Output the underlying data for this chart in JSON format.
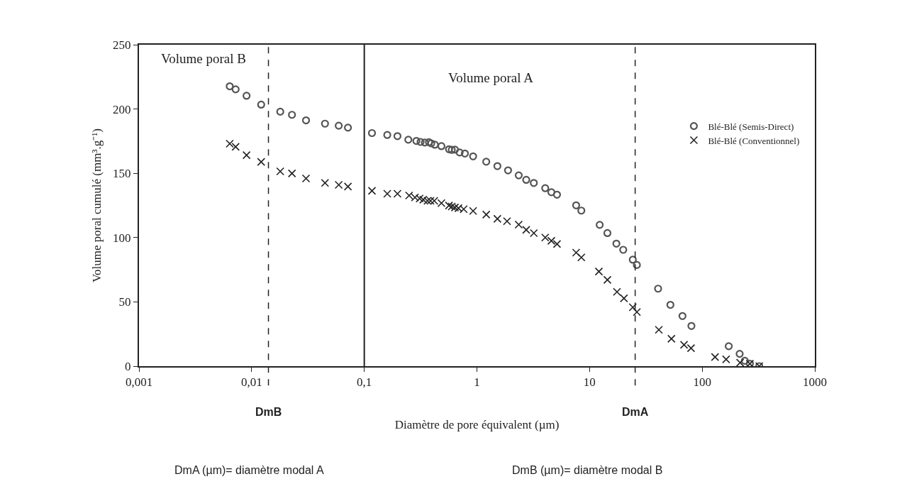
{
  "chart_data": {
    "type": "scatter",
    "xlabel": "Diamètre de pore équivalent (µm)",
    "ylabel": "Volume poral cumulé (mm³.g⁻¹)",
    "log": "x",
    "xlim": [
      0.001,
      1000
    ],
    "xticks": [
      {
        "value": 0.001,
        "label": "0,001"
      },
      {
        "value": 0.01,
        "label": "0,01"
      },
      {
        "value": 0.1,
        "label": "0,1"
      },
      1,
      10,
      100,
      1000
    ],
    "ylim": [
      0,
      250
    ],
    "yticks": [
      0,
      50,
      100,
      150,
      200,
      250
    ],
    "legend": "top right",
    "series": [
      {
        "name": "Blé-Blé (Semis-Direct)",
        "color": "#555555",
        "marker": "circle",
        "x": [
          0.00639,
          0.00721,
          0.00901,
          0.01215,
          0.01795,
          0.0228,
          0.0304,
          0.0448,
          0.0593,
          0.0716,
          0.117,
          0.16,
          0.197,
          0.246,
          0.29,
          0.316,
          0.345,
          0.375,
          0.393,
          0.423,
          0.484,
          0.565,
          0.598,
          0.638,
          0.702,
          0.782,
          0.925,
          1.21,
          1.52,
          1.89,
          2.35,
          2.74,
          3.2,
          4.04,
          4.58,
          5.14,
          7.6,
          8.45,
          12.3,
          14.4,
          17.3,
          19.9,
          24.2,
          26.3,
          40.6,
          52.2,
          66.8,
          80.2,
          172,
          215,
          239,
          265,
          321
        ],
        "values": [
          217.7,
          215.3,
          210.3,
          203.4,
          197.9,
          195.5,
          191.2,
          188.6,
          187.0,
          185.5,
          181.3,
          179.8,
          178.9,
          176.1,
          175.2,
          174.4,
          173.9,
          174.2,
          173.3,
          172.2,
          171.1,
          168.7,
          168.2,
          168.4,
          166.2,
          165.4,
          163.2,
          159.0,
          155.6,
          152.3,
          148.4,
          144.9,
          142.5,
          138.4,
          135.3,
          133.4,
          125.1,
          121.0,
          109.9,
          103.5,
          95.3,
          90.5,
          82.8,
          78.7,
          60.3,
          47.7,
          39.0,
          31.3,
          15.5,
          9.6,
          4.2,
          1.9,
          0
        ]
      },
      {
        "name": "Blé-Blé (Conventionnel)",
        "color": "#222222",
        "marker": "cross",
        "x": [
          0.00639,
          0.00721,
          0.00901,
          0.01215,
          0.01795,
          0.0228,
          0.0304,
          0.0448,
          0.0593,
          0.0716,
          0.117,
          0.16,
          0.197,
          0.25,
          0.282,
          0.31,
          0.334,
          0.364,
          0.387,
          0.418,
          0.484,
          0.565,
          0.598,
          0.638,
          0.686,
          0.763,
          0.925,
          1.21,
          1.52,
          1.85,
          2.35,
          2.74,
          3.2,
          4.04,
          4.58,
          5.14,
          7.6,
          8.45,
          12.1,
          14.4,
          17.5,
          20.2,
          24.2,
          26.3,
          41.2,
          53.3,
          69.0,
          79.6,
          130,
          163,
          217,
          265,
          321
        ],
        "values": [
          173.0,
          170.6,
          164.1,
          158.9,
          151.5,
          149.9,
          146.0,
          142.5,
          141.0,
          139.7,
          136.4,
          134.1,
          134.1,
          132.7,
          131.2,
          130.4,
          129.5,
          128.6,
          128.6,
          128.6,
          126.8,
          124.9,
          124.2,
          123.4,
          122.9,
          122.1,
          120.7,
          117.9,
          114.6,
          112.7,
          110.1,
          106,
          103.5,
          100,
          97.5,
          95,
          88.3,
          84.6,
          73.6,
          67.1,
          57.8,
          52.8,
          45.8,
          42.1,
          28.3,
          21.3,
          16.6,
          14.0,
          7.1,
          5.3,
          2.7,
          1.9,
          0
        ]
      }
    ],
    "ref_lines": [
      {
        "axis": "x",
        "value": 0.1,
        "label": null,
        "color": "#222222",
        "line_style": "solid"
      },
      {
        "axis": "x",
        "value": 0.0141,
        "label": "DmB",
        "color": "#222222",
        "line_style": "dashed"
      },
      {
        "axis": "x",
        "value": 25.4,
        "label": "DmA",
        "color": "#222222",
        "line_style": "dashed"
      }
    ],
    "annotations": [
      "Volume poral B",
      "Volume poral A",
      "DmA (µm)= diamètre modal A",
      "DmB (µm)= diamètre modal B"
    ]
  }
}
